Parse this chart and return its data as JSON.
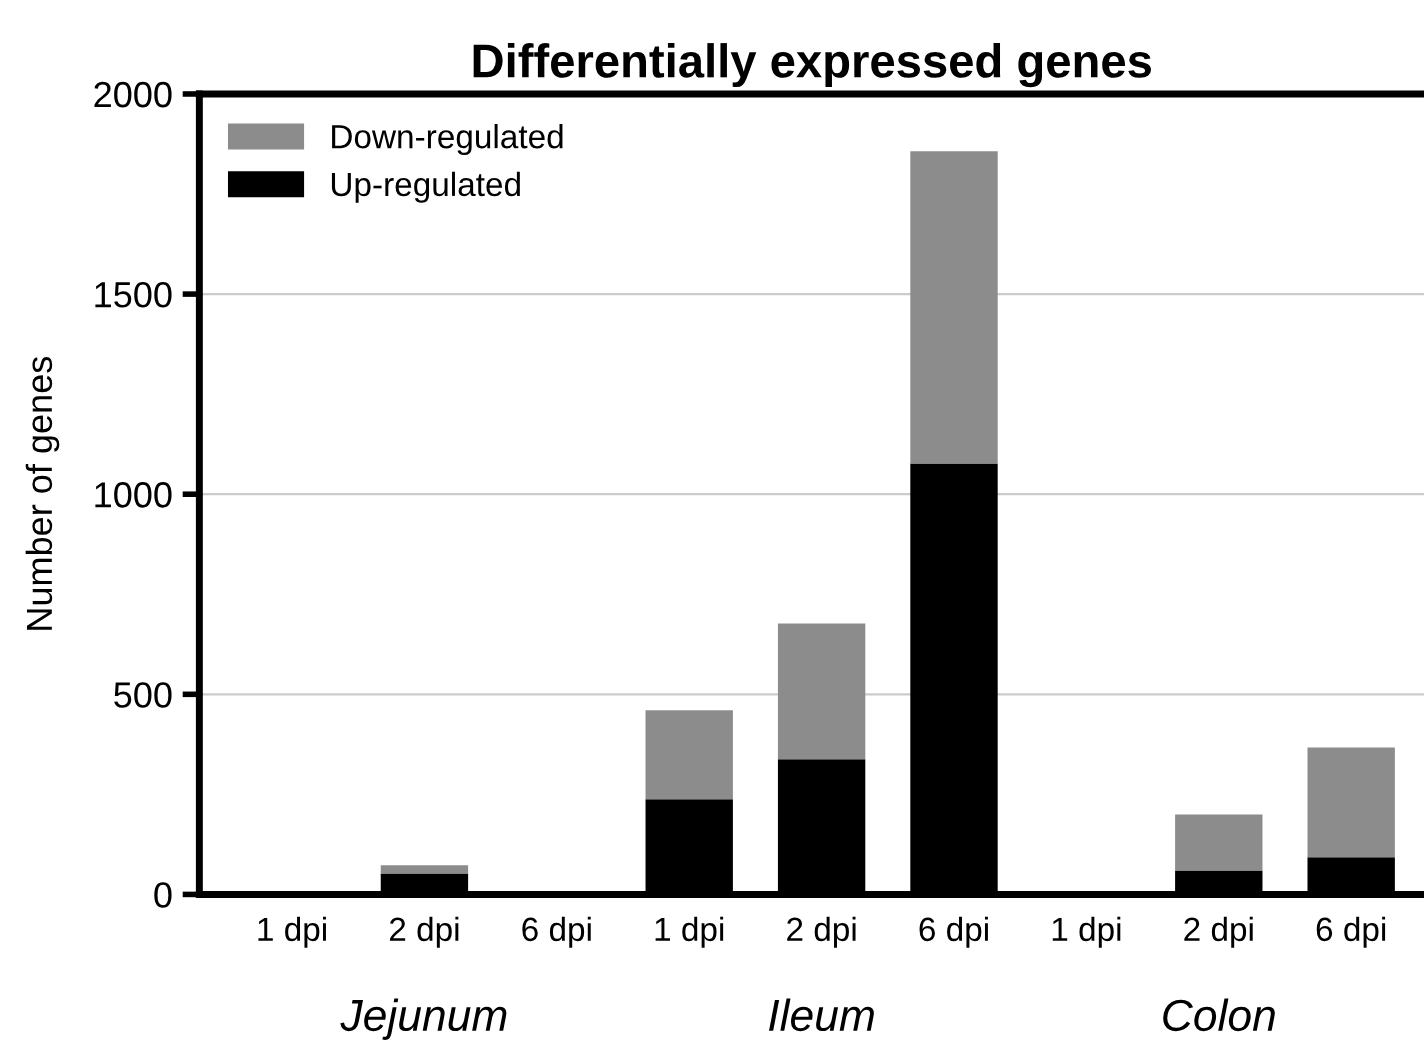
{
  "chart_data": {
    "type": "bar",
    "title": "Differentially expressed genes",
    "ylabel": "Number of genes",
    "categories": [
      "1 dpi",
      "2 dpi",
      "6 dpi",
      "1 dpi",
      "2 dpi",
      "6 dpi",
      "1 dpi",
      "2 dpi",
      "6 dpi"
    ],
    "series": [
      {
        "name": "Up-regulated",
        "color": "#000000",
        "values": [
          0,
          52,
          0,
          238,
          338,
          1077,
          0,
          60,
          93
        ]
      },
      {
        "name": "Down-regulated",
        "color": "#8c8c8c",
        "values": [
          0,
          21,
          0,
          222,
          339,
          780,
          0,
          140,
          274
        ]
      }
    ],
    "stacked": true,
    "ylim": [
      0,
      2000
    ],
    "yticks": [
      0,
      500,
      1000,
      1500,
      2000
    ],
    "grid": "y",
    "legend": "top left",
    "annotations": [
      "Jejunum",
      "Ileum",
      "Colon"
    ]
  }
}
